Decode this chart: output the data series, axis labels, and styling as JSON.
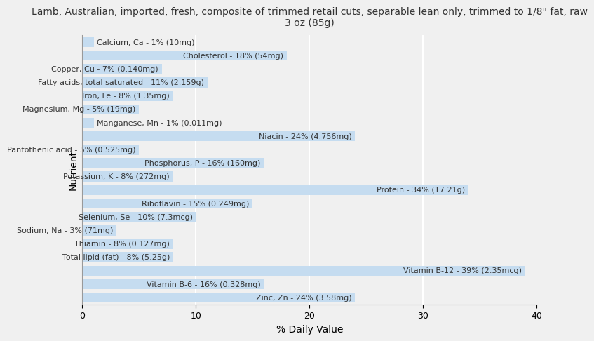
{
  "title": "Lamb, Australian, imported, fresh, composite of trimmed retail cuts, separable lean only, trimmed to 1/8\" fat, raw\n3 oz (85g)",
  "xlabel": "% Daily Value",
  "ylabel": "Nutrient",
  "xlim": [
    0,
    40
  ],
  "nutrients": [
    "Calcium, Ca - 1% (10mg)",
    "Cholesterol - 18% (54mg)",
    "Copper, Cu - 7% (0.140mg)",
    "Fatty acids, total saturated - 11% (2.159g)",
    "Iron, Fe - 8% (1.35mg)",
    "Magnesium, Mg - 5% (19mg)",
    "Manganese, Mn - 1% (0.011mg)",
    "Niacin - 24% (4.756mg)",
    "Pantothenic acid - 5% (0.525mg)",
    "Phosphorus, P - 16% (160mg)",
    "Potassium, K - 8% (272mg)",
    "Protein - 34% (17.21g)",
    "Riboflavin - 15% (0.249mg)",
    "Selenium, Se - 10% (7.3mcg)",
    "Sodium, Na - 3% (71mg)",
    "Thiamin - 8% (0.127mg)",
    "Total lipid (fat) - 8% (5.25g)",
    "Vitamin B-12 - 39% (2.35mcg)",
    "Vitamin B-6 - 16% (0.328mg)",
    "Zinc, Zn - 24% (3.58mg)"
  ],
  "values": [
    1,
    18,
    7,
    11,
    8,
    5,
    1,
    24,
    5,
    16,
    8,
    34,
    15,
    10,
    3,
    8,
    8,
    39,
    16,
    24
  ],
  "bar_color": "#c5dcf0",
  "background_color": "#f0f0f0",
  "plot_bg_color": "#f0f0f0",
  "text_color": "#333333",
  "grid_color": "#ffffff",
  "title_fontsize": 10,
  "axis_label_fontsize": 10,
  "tick_fontsize": 9,
  "bar_label_fontsize": 8
}
